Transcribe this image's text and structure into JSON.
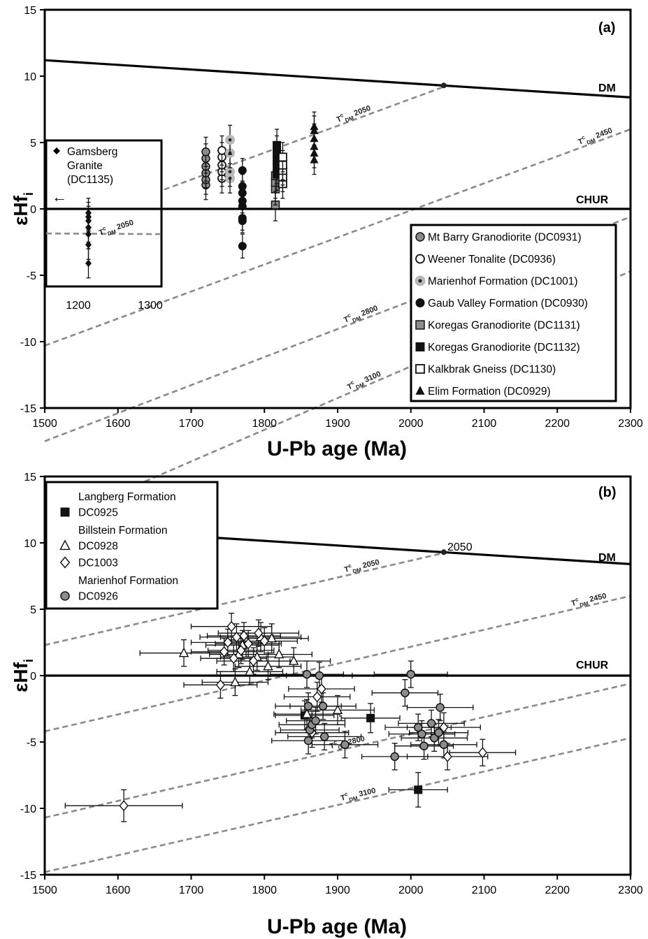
{
  "figure": {
    "xlabel": "U-Pb age (Ma)",
    "ylabel": "εHf",
    "ylabel_sub": "i",
    "curves": {
      "dm": "DM",
      "chur": "CHUR"
    },
    "tdm_prefix": "T",
    "tdm_sup": "c",
    "tdm_sub": "DM"
  },
  "chart_data": [
    {
      "type": "scatter",
      "panel": "(a)",
      "xlabel": "U-Pb age (Ma)",
      "ylabel": "εHfi",
      "xlim": [
        1500,
        2300
      ],
      "ylim": [
        -15,
        15
      ],
      "xticks": [
        1500,
        1600,
        1700,
        1800,
        1900,
        2000,
        2100,
        2200,
        2300
      ],
      "yticks": [
        -15,
        -10,
        -5,
        0,
        5,
        10,
        15
      ],
      "grid": false,
      "legend_position": "bottom-right",
      "reference_lines": [
        {
          "name": "DM",
          "x": [
            1500,
            2300
          ],
          "y": [
            11.2,
            8.4
          ]
        },
        {
          "name": "CHUR",
          "x": [
            1500,
            2300
          ],
          "y": [
            0,
            0
          ]
        }
      ],
      "model_age_lines": [
        {
          "name": "2050",
          "x": [
            1500,
            2050
          ],
          "y": [
            -1.85,
            9.3
          ]
        },
        {
          "name": "2450",
          "x": [
            1500,
            2300
          ],
          "y": [
            -10.3,
            6.0
          ]
        },
        {
          "name": "2800",
          "x": [
            1500,
            2300
          ],
          "y": [
            -17.5,
            -0.6
          ]
        },
        {
          "name": "3100",
          "x": [
            1500,
            2300
          ],
          "y": [
            -23.8,
            -4.7
          ]
        }
      ],
      "dm_point": {
        "x": 2045,
        "y": 9.3
      },
      "inset": {
        "label_lines": [
          "Gamsberg",
          "Granite",
          "(DC1135)"
        ],
        "arrow": "←",
        "line_label": "2050",
        "xlim": [
          1170,
          1320
        ],
        "ylim": [
          -5.8,
          5.2
        ],
        "xticks": [
          1200,
          1300
        ],
        "x": 1225,
        "y": [
          -0.3,
          -0.6,
          -0.9,
          -1.4,
          -1.9,
          -2.7,
          -4.1
        ],
        "err_y": 1.1,
        "err_x": 2
      },
      "series": [
        {
          "name": "Mt Barry Granodiorite (DC0931)",
          "marker": "circle-gray",
          "x": 1720,
          "y": [
            1.8,
            2.2,
            2.7,
            3.2,
            3.8,
            4.3
          ],
          "err_y": 1.1,
          "err_x": 2
        },
        {
          "name": "Weener Tonalite (DC0936)",
          "marker": "circle-open",
          "x": 1742,
          "y": [
            2.3,
            2.8,
            3.3,
            3.9,
            4.4
          ],
          "err_y": 1.1,
          "err_x": 2
        },
        {
          "name": "Marienhof Formation (DC1001)",
          "marker": "circle-halo",
          "x": 1753,
          "y": [
            2.3,
            2.8,
            4.2,
            5.2
          ],
          "err_y": 1.1,
          "err_x": 2
        },
        {
          "name": "Gaub Valley Formation (DC0930)",
          "marker": "circle-black",
          "x": 1770,
          "y": [
            2.9,
            1.7,
            1.2,
            0.6,
            0.2,
            -0.7,
            -0.9,
            -2.8
          ],
          "err_y": 0.9,
          "err_x": 2
        },
        {
          "name": "Koregas Granodiorite (DC1131)",
          "marker": "square-gray",
          "x": 1815,
          "y": [
            0.3,
            1.5,
            2.0,
            2.5
          ],
          "err_y": 1.2,
          "err_x": 2
        },
        {
          "name": "Koregas Granodiorite (DC1132)",
          "marker": "square-black",
          "x": 1817,
          "y": [
            4.8,
            4.3,
            3.7,
            3.1,
            2.6
          ],
          "err_y": 1.2,
          "err_x": 2
        },
        {
          "name": "Kalkbrak Gneiss (DC1130)",
          "marker": "square-open",
          "x": 1825,
          "y": [
            1.9,
            2.4,
            2.9,
            3.3,
            3.9
          ],
          "err_y": 1.1,
          "err_x": 2
        },
        {
          "name": "Elim Formation (DC0929)",
          "marker": "triangle-black",
          "x": 1868,
          "y": [
            3.7,
            4.2,
            4.7,
            5.3,
            5.9,
            6.2
          ],
          "err_y": 1.1,
          "err_x": 2
        }
      ]
    },
    {
      "type": "scatter",
      "panel": "(b)",
      "xlabel": "U-Pb age (Ma)",
      "ylabel": "εHfi",
      "xlim": [
        1500,
        2300
      ],
      "ylim": [
        -15,
        15
      ],
      "xticks": [
        1500,
        1600,
        1700,
        1800,
        1900,
        2000,
        2100,
        2200,
        2300
      ],
      "yticks": [
        -15,
        -10,
        -5,
        0,
        5,
        10,
        15
      ],
      "grid": false,
      "legend_position": "top-left",
      "legend_groups": [
        "Langberg Formation",
        "Billstein Formation",
        "Marienhof Formation"
      ],
      "dm_point_label": "2050",
      "reference_lines": [
        {
          "name": "DM",
          "x": [
            1500,
            2300
          ],
          "y": [
            11.2,
            8.4
          ]
        },
        {
          "name": "CHUR",
          "x": [
            1500,
            2300
          ],
          "y": [
            0,
            0
          ]
        }
      ],
      "model_age_lines": [
        {
          "name": "2050",
          "x": [
            1500,
            2050
          ],
          "y": [
            2.3,
            9.3
          ]
        },
        {
          "name": "2450",
          "x": [
            1500,
            2300
          ],
          "y": [
            -4.2,
            6.0
          ]
        },
        {
          "name": "2800",
          "x": [
            1500,
            2300
          ],
          "y": [
            -10.7,
            -0.6
          ]
        },
        {
          "name": "3100",
          "x": [
            1500,
            2300
          ],
          "y": [
            -14.8,
            -4.7
          ]
        }
      ],
      "dm_point": {
        "x": 2045,
        "y": 9.3
      },
      "series": [
        {
          "name": "DC0925",
          "marker": "square-black",
          "points": [
            [
              1855,
              -3.0,
              40,
              1.1
            ],
            [
              1945,
              -3.2,
              40,
              1.1
            ],
            [
              2010,
              -8.6,
              40,
              1.3
            ]
          ]
        },
        {
          "name": "DC0928",
          "marker": "triangle-open",
          "points": [
            [
              1690,
              1.7,
              60,
              1.0
            ],
            [
              1760,
              -0.5,
              45,
              1.0
            ],
            [
              1765,
              1.6,
              40,
              1.0
            ],
            [
              1770,
              2.3,
              50,
              1.1
            ],
            [
              1780,
              0.3,
              45,
              1.0
            ],
            [
              1790,
              1.4,
              50,
              1.0
            ],
            [
              1795,
              2.9,
              55,
              1.1
            ],
            [
              1805,
              0.7,
              45,
              1.0
            ],
            [
              1810,
              2.8,
              50,
              1.1
            ],
            [
              1820,
              1.6,
              45,
              1.0
            ],
            [
              1840,
              1.1,
              50,
              1.0
            ],
            [
              1858,
              -2.9,
              45,
              1.1
            ],
            [
              1900,
              -2.6,
              50,
              1.1
            ]
          ]
        },
        {
          "name": "DC1003",
          "marker": "diamond-open",
          "points": [
            [
              1608,
              -9.8,
              80,
              1.2
            ],
            [
              1740,
              -0.7,
              50,
              1.0
            ],
            [
              1745,
              1.8,
              45,
              1.0
            ],
            [
              1750,
              2.5,
              50,
              1.0
            ],
            [
              1755,
              3.7,
              55,
              1.0
            ],
            [
              1758,
              1.3,
              45,
              1.0
            ],
            [
              1762,
              2.9,
              50,
              1.0
            ],
            [
              1768,
              1.9,
              45,
              1.0
            ],
            [
              1772,
              3.0,
              50,
              1.0
            ],
            [
              1778,
              2.4,
              45,
              1.0
            ],
            [
              1785,
              1.1,
              50,
              1.0
            ],
            [
              1792,
              3.2,
              55,
              1.0
            ],
            [
              1800,
              2.6,
              45,
              1.0
            ],
            [
              1865,
              -4.3,
              50,
              1.1
            ],
            [
              1872,
              -1.6,
              45,
              1.1
            ],
            [
              1878,
              -1.0,
              45,
              1.0
            ],
            [
              2045,
              -3.9,
              50,
              1.1
            ],
            [
              2050,
              -6.1,
              55,
              1.0
            ],
            [
              2098,
              -5.8,
              45,
              1.0
            ]
          ]
        },
        {
          "name": "DC0926",
          "marker": "circle-gray",
          "points": [
            [
              1858,
              0.1,
              50,
              1.0
            ],
            [
              1860,
              -2.3,
              45,
              1.0
            ],
            [
              1860,
              -4.9,
              50,
              1.0
            ],
            [
              1862,
              -4.1,
              40,
              1.0
            ],
            [
              1865,
              -3.7,
              45,
              1.0
            ],
            [
              1870,
              -3.4,
              40,
              1.0
            ],
            [
              1875,
              0.0,
              45,
              1.0
            ],
            [
              1880,
              -2.3,
              45,
              1.0
            ],
            [
              1882,
              -4.6,
              50,
              1.0
            ],
            [
              1910,
              -5.2,
              45,
              1.0
            ],
            [
              1978,
              -6.1,
              45,
              1.0
            ],
            [
              1992,
              -1.3,
              45,
              1.0
            ],
            [
              2000,
              0.1,
              50,
              1.0
            ],
            [
              2010,
              -3.9,
              45,
              1.0
            ],
            [
              2015,
              -4.4,
              45,
              1.0
            ],
            [
              2018,
              -5.3,
              40,
              1.0
            ],
            [
              2028,
              -3.6,
              45,
              1.0
            ],
            [
              2032,
              -4.7,
              45,
              1.0
            ],
            [
              2038,
              -4.3,
              40,
              1.0
            ],
            [
              2040,
              -2.4,
              45,
              1.0
            ],
            [
              2045,
              -5.2,
              45,
              1.0
            ]
          ]
        }
      ]
    }
  ]
}
